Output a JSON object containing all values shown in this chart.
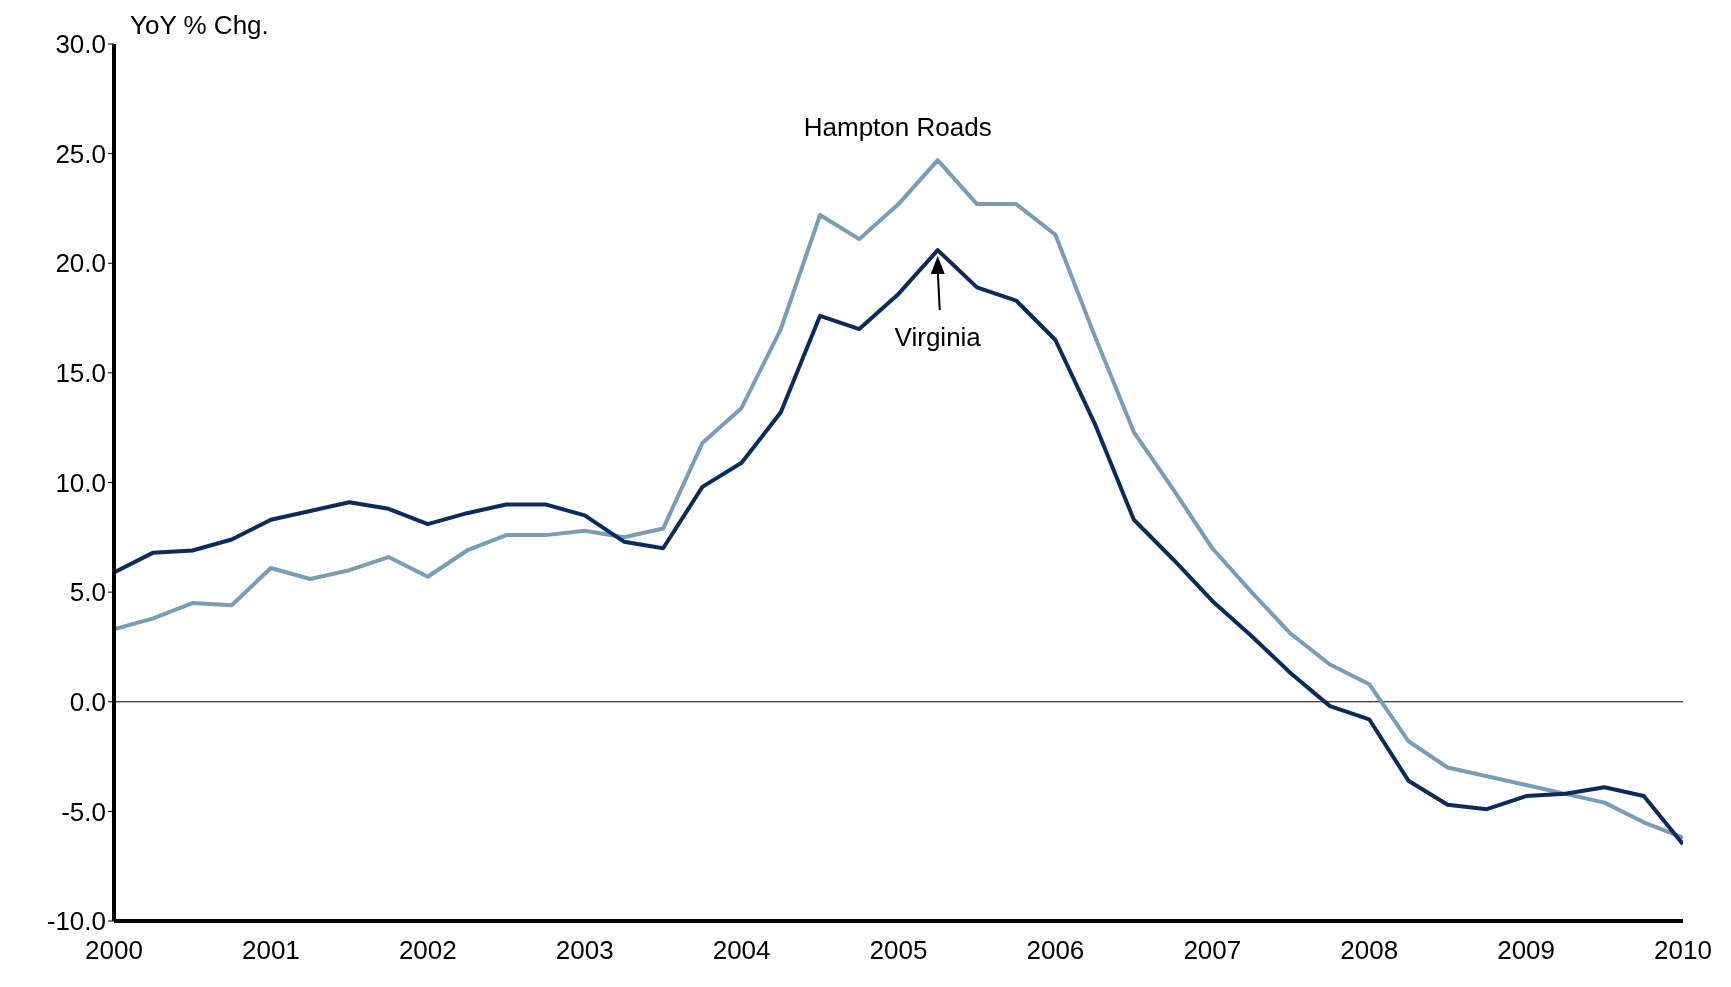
{
  "chart_data": {
    "type": "line",
    "ylabel": "YoY % Chg.",
    "x": [
      2000,
      2000.25,
      2000.5,
      2000.75,
      2001,
      2001.25,
      2001.5,
      2001.75,
      2002,
      2002.25,
      2002.5,
      2002.75,
      2003,
      2003.25,
      2003.5,
      2003.75,
      2004,
      2004.25,
      2004.5,
      2004.75,
      2005,
      2005.25,
      2005.5,
      2005.75,
      2006,
      2006.25,
      2006.5,
      2006.75,
      2007,
      2007.25,
      2007.5,
      2007.75,
      2008,
      2008.25,
      2008.5,
      2008.75,
      2009,
      2009.25,
      2009.5,
      2009.75,
      2010
    ],
    "series": [
      {
        "name": "Hampton Roads",
        "color": "#7a9db5",
        "values": [
          3.3,
          3.8,
          4.5,
          4.4,
          6.1,
          5.6,
          6.0,
          6.6,
          5.7,
          6.9,
          7.6,
          7.6,
          7.8,
          7.5,
          7.9,
          11.8,
          13.4,
          17.0,
          22.2,
          21.1,
          22.7,
          24.7,
          22.7,
          22.7,
          21.3,
          16.7,
          12.3,
          9.7,
          7.0,
          5.0,
          3.1,
          1.7,
          0.8,
          -1.8,
          -3.0,
          -3.4,
          -3.8,
          -4.2,
          -4.6,
          -5.5,
          -6.2
        ]
      },
      {
        "name": "Virginia",
        "color": "#0d2b5a",
        "values": [
          5.9,
          6.8,
          6.9,
          7.4,
          8.3,
          8.7,
          9.1,
          8.8,
          8.1,
          8.6,
          9.0,
          9.0,
          8.5,
          7.3,
          7.0,
          9.8,
          10.9,
          13.2,
          17.6,
          17.0,
          18.6,
          20.6,
          18.9,
          18.3,
          16.5,
          12.7,
          8.3,
          6.5,
          4.6,
          3.0,
          1.3,
          -0.2,
          -0.8,
          -3.6,
          -4.7,
          -4.9,
          -4.3,
          -4.2,
          -3.9,
          -4.3,
          -6.5
        ]
      }
    ],
    "xlim": [
      2000,
      2010
    ],
    "xticks": [
      2000,
      2001,
      2002,
      2003,
      2004,
      2005,
      2006,
      2007,
      2008,
      2009,
      2010
    ],
    "ylim": [
      -10,
      30
    ],
    "yticks": [
      {
        "value": -10,
        "label": "-10.0"
      },
      {
        "value": -5,
        "label": "-5.0"
      },
      {
        "value": 0,
        "label": "0.0"
      },
      {
        "value": 5,
        "label": "5.0"
      },
      {
        "value": 10,
        "label": "10.0"
      },
      {
        "value": 15,
        "label": "15.0"
      },
      {
        "value": 20,
        "label": "20.0"
      },
      {
        "value": 25,
        "label": "25.0"
      },
      {
        "value": 30,
        "label": "30.0"
      }
    ],
    "ref_lines": [
      {
        "axis": "y",
        "value": 0,
        "color": "#000000"
      }
    ]
  }
}
